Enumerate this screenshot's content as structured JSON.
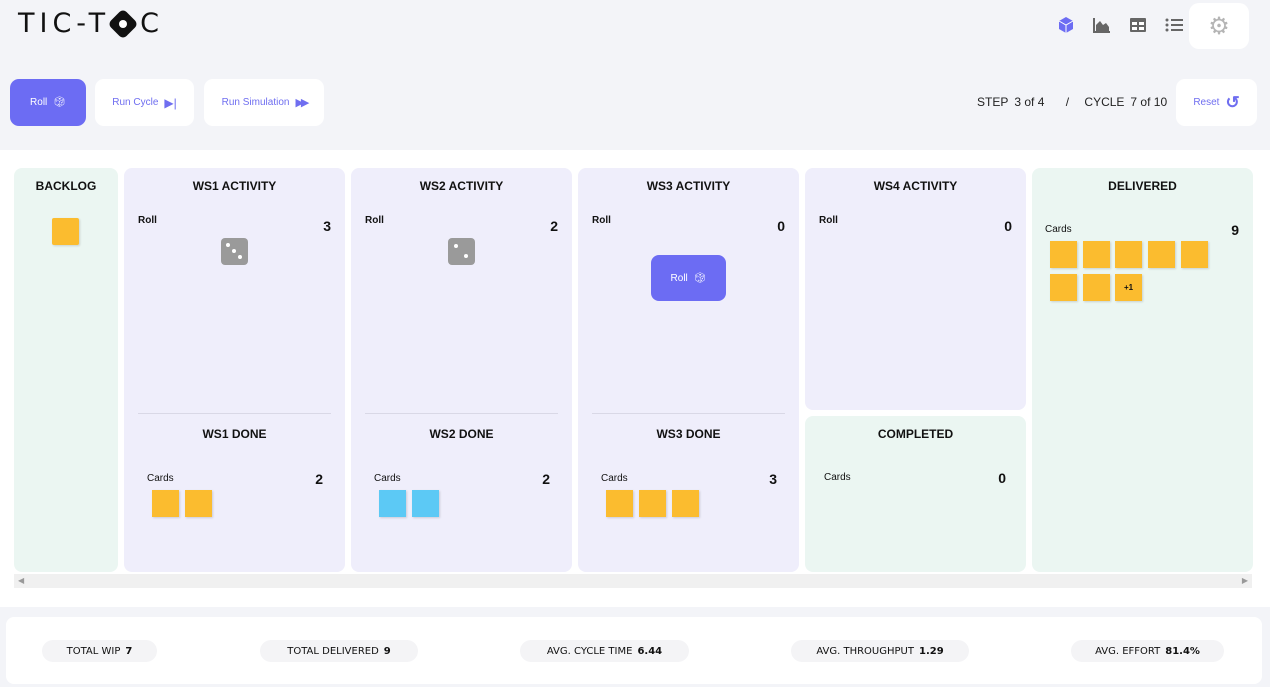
{
  "app": {
    "logo": "TIC-TOC"
  },
  "header": {
    "icons": [
      "cube-icon",
      "area-chart-icon",
      "table-icon",
      "list-icon"
    ],
    "active_icon": "cube-icon",
    "settings_icon": "gear-icon"
  },
  "controls": {
    "roll": "Roll",
    "run_cycle": "Run Cycle",
    "run_simulation": "Run Simulation",
    "reset": "Reset",
    "step_label": "STEP",
    "step_value": "3 of 4",
    "separator": "/",
    "cycle_label": "CYCLE",
    "cycle_value": "7 of 10"
  },
  "colors": {
    "accent": "#6c6cf3",
    "card_yellow": "#fbbc2f",
    "card_blue": "#5cc9f5",
    "green_col": "#ebf6f2",
    "purple_col": "#efeefb"
  },
  "board": {
    "backlog": {
      "title": "BACKLOG",
      "cards": 1
    },
    "ws1": {
      "title": "WS1 ACTIVITY",
      "roll_label": "Roll",
      "roll_value": "3",
      "done_title": "WS1 DONE",
      "cards_label": "Cards",
      "cards_value": "2"
    },
    "ws2": {
      "title": "WS2 ACTIVITY",
      "roll_label": "Roll",
      "roll_value": "2",
      "done_title": "WS2 DONE",
      "cards_label": "Cards",
      "cards_value": "2"
    },
    "ws3": {
      "title": "WS3 ACTIVITY",
      "roll_label": "Roll",
      "roll_value": "0",
      "roll_button": "Roll",
      "done_title": "WS3 DONE",
      "cards_label": "Cards",
      "cards_value": "3"
    },
    "ws4": {
      "title": "WS4 ACTIVITY",
      "roll_label": "Roll",
      "roll_value": "0"
    },
    "completed": {
      "title": "COMPLETED",
      "cards_label": "Cards",
      "cards_value": "0"
    },
    "delivered": {
      "title": "DELIVERED",
      "cards_label": "Cards",
      "cards_value": "9",
      "overflow": "+1"
    }
  },
  "metrics": [
    {
      "label": "TOTAL WIP",
      "value": "7"
    },
    {
      "label": "TOTAL DELIVERED",
      "value": "9"
    },
    {
      "label": "AVG. CYCLE TIME",
      "value": "6.44"
    },
    {
      "label": "AVG. THROUGHPUT",
      "value": "1.29"
    },
    {
      "label": "AVG. EFFORT",
      "value": "81.4%"
    }
  ]
}
